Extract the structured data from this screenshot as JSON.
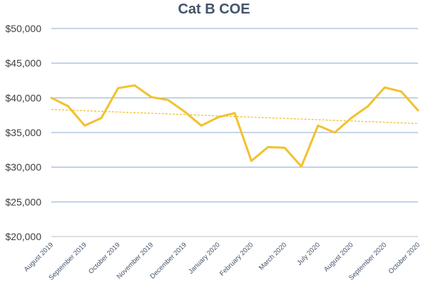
{
  "chart_data": {
    "type": "line",
    "title": "Cat B COE",
    "categories": [
      "August 2019",
      "",
      "September 2019",
      "",
      "October 2019",
      "",
      "November 2019",
      "",
      "December 2019",
      "",
      "January 2020",
      "",
      "February 2020",
      "",
      "March 2020",
      "",
      "July 2020",
      "",
      "August 2020",
      "",
      "September 2020",
      "",
      "October 2020"
    ],
    "series": [
      {
        "values": [
          40000,
          38800,
          36000,
          37100,
          41400,
          41800,
          40100,
          39700,
          38000,
          36000,
          37200,
          37800,
          30900,
          32900,
          32800,
          30100,
          36000,
          35000,
          37100,
          38800,
          41500,
          40900,
          38200
        ],
        "color": "#f2c12e"
      }
    ],
    "trendline": {
      "type": "linear",
      "color": "#f2c12e",
      "style": "dashed"
    },
    "ylim": [
      20000,
      50000
    ],
    "yticks": [
      20000,
      25000,
      30000,
      35000,
      40000,
      45000,
      50000
    ],
    "ytick_labels": [
      "$20,000",
      "$25,000",
      "$30,000",
      "$35,000",
      "$40,000",
      "$45,000",
      "$50,000"
    ],
    "grid": true,
    "gridline_color": "#8eaad1",
    "axis_color": "#bfbfbf",
    "legend": "none"
  }
}
